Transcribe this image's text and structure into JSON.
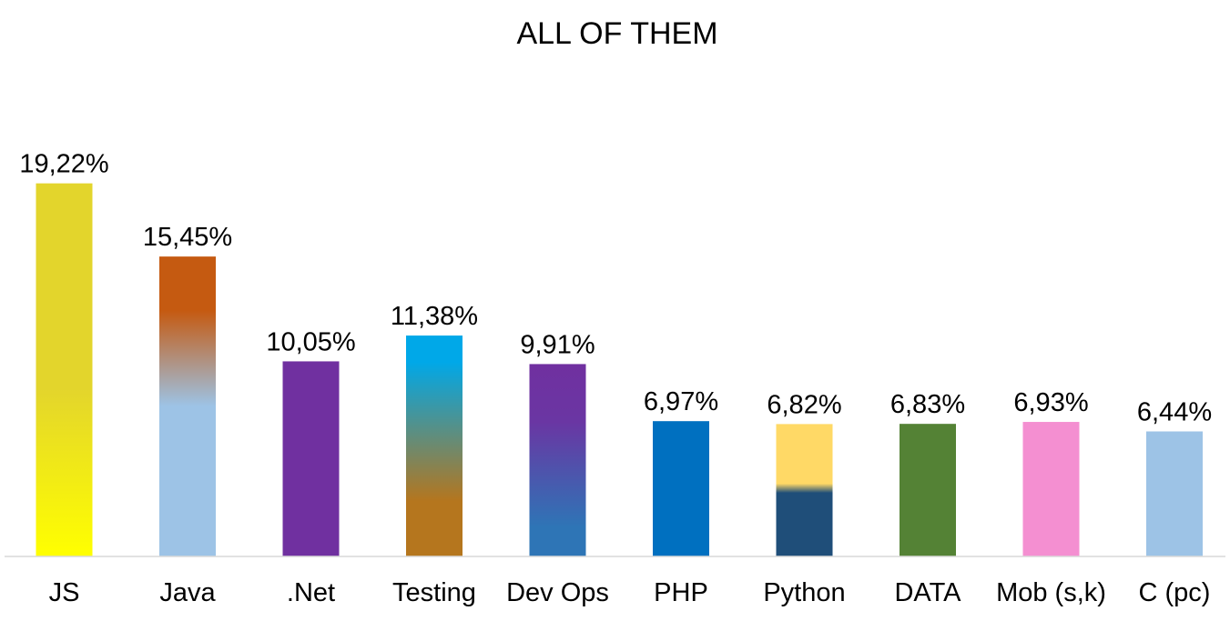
{
  "chart_data": {
    "type": "bar",
    "title": "ALL OF THEM",
    "xlabel": "",
    "ylabel": "",
    "ylim": [
      0,
      20
    ],
    "grid": false,
    "legend": "none",
    "categories": [
      "JS",
      "Java",
      ".Net",
      "Testing",
      "Dev Ops",
      "PHP",
      "Python",
      "DATA",
      "Mob (s,k)",
      "C (pc)"
    ],
    "values": [
      19.22,
      15.45,
      10.05,
      11.38,
      9.91,
      6.97,
      6.82,
      6.83,
      6.93,
      6.44
    ],
    "data_labels": [
      "19,22%",
      "15,45%",
      "10,05%",
      "11,38%",
      "9,91%",
      "6,97%",
      "6,82%",
      "6,83%",
      "6,93%",
      "6,44%"
    ],
    "axis_color": "#d9d9d9",
    "bar_fills": [
      {
        "kind": "linear",
        "stops": [
          [
            0,
            "#e3d52c"
          ],
          [
            0.55,
            "#e3d52c"
          ],
          [
            1,
            "#ffff00"
          ]
        ]
      },
      {
        "kind": "linear",
        "stops": [
          [
            0,
            "#c55a11"
          ],
          [
            0.18,
            "#c55a11"
          ],
          [
            0.5,
            "#9dc3e6"
          ],
          [
            1,
            "#9dc3e6"
          ]
        ]
      },
      {
        "kind": "solid",
        "color": "#7030a0"
      },
      {
        "kind": "linear",
        "stops": [
          [
            0,
            "#00a8e8"
          ],
          [
            0.12,
            "#00a8e8"
          ],
          [
            0.75,
            "#b5761e"
          ],
          [
            1,
            "#b5761e"
          ]
        ]
      },
      {
        "kind": "linear",
        "stops": [
          [
            0,
            "#7030a0"
          ],
          [
            0.3,
            "#6a36a3"
          ],
          [
            0.85,
            "#2e75b6"
          ],
          [
            1,
            "#2e75b6"
          ]
        ]
      },
      {
        "kind": "solid",
        "color": "#0070c0"
      },
      {
        "kind": "linear",
        "stops": [
          [
            0,
            "#ffd966"
          ],
          [
            0.45,
            "#ffd966"
          ],
          [
            0.52,
            "#1f4e79"
          ],
          [
            1,
            "#1f4e79"
          ]
        ]
      },
      {
        "kind": "solid",
        "color": "#548235"
      },
      {
        "kind": "solid",
        "color": "#f48fd1"
      },
      {
        "kind": "solid",
        "color": "#9dc3e6"
      }
    ]
  }
}
